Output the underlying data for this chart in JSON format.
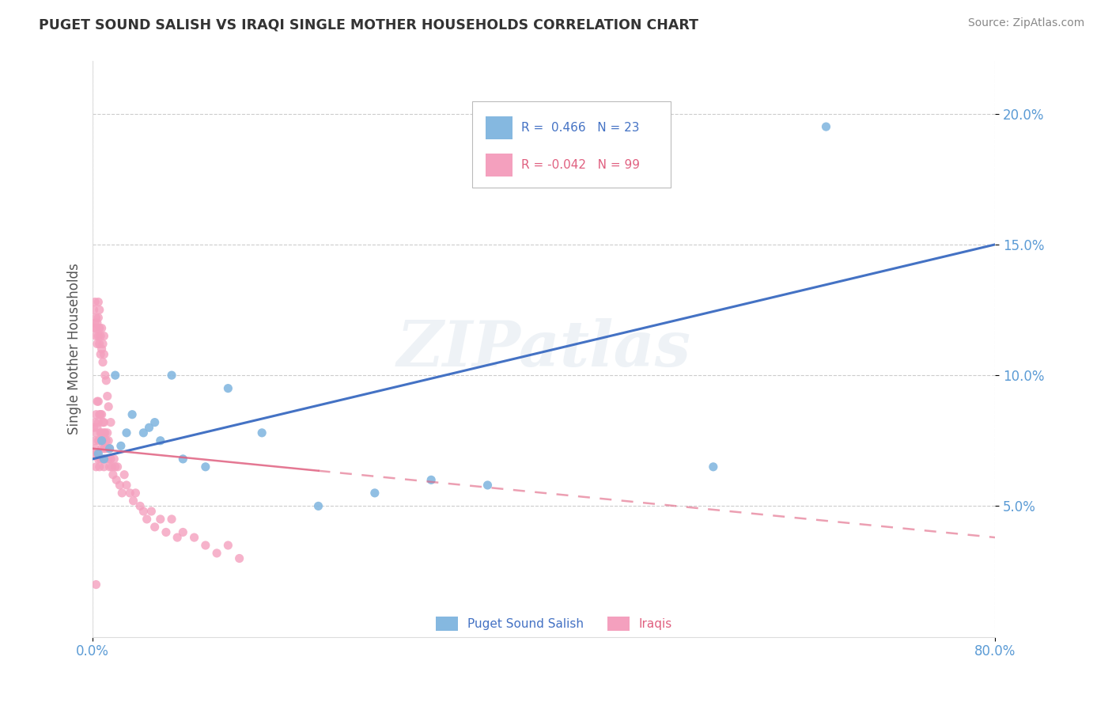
{
  "title": "PUGET SOUND SALISH VS IRAQI SINGLE MOTHER HOUSEHOLDS CORRELATION CHART",
  "source": "Source: ZipAtlas.com",
  "ylabel": "Single Mother Households",
  "xlim": [
    0.0,
    0.8
  ],
  "ylim": [
    0.0,
    0.22
  ],
  "yticks": [
    0.05,
    0.1,
    0.15,
    0.2
  ],
  "ytick_labels": [
    "5.0%",
    "10.0%",
    "15.0%",
    "20.0%"
  ],
  "blue_color": "#85b8e0",
  "pink_color": "#f4a0be",
  "blue_line_color": "#4472c4",
  "pink_line_color": "#e06080",
  "watermark_text": "ZIPatlas",
  "legend_blue_r": "R =  0.466",
  "legend_blue_n": "N = 23",
  "legend_pink_r": "R = -0.042",
  "legend_pink_n": "N = 99",
  "blue_x": [
    0.005,
    0.008,
    0.01,
    0.015,
    0.02,
    0.025,
    0.03,
    0.035,
    0.045,
    0.05,
    0.055,
    0.06,
    0.07,
    0.08,
    0.1,
    0.12,
    0.15,
    0.2,
    0.25,
    0.3,
    0.35,
    0.55,
    0.65
  ],
  "blue_y": [
    0.07,
    0.075,
    0.068,
    0.072,
    0.1,
    0.073,
    0.078,
    0.085,
    0.078,
    0.08,
    0.082,
    0.075,
    0.1,
    0.068,
    0.065,
    0.095,
    0.078,
    0.05,
    0.055,
    0.06,
    0.058,
    0.065,
    0.195
  ],
  "pink_x": [
    0.001,
    0.001,
    0.002,
    0.002,
    0.002,
    0.003,
    0.003,
    0.003,
    0.004,
    0.004,
    0.004,
    0.005,
    0.005,
    0.005,
    0.005,
    0.006,
    0.006,
    0.006,
    0.007,
    0.007,
    0.007,
    0.008,
    0.008,
    0.008,
    0.009,
    0.009,
    0.009,
    0.01,
    0.01,
    0.01,
    0.01,
    0.011,
    0.011,
    0.012,
    0.012,
    0.013,
    0.013,
    0.014,
    0.014,
    0.015,
    0.015,
    0.016,
    0.017,
    0.018,
    0.019,
    0.02,
    0.021,
    0.022,
    0.024,
    0.026,
    0.028,
    0.03,
    0.033,
    0.036,
    0.038,
    0.042,
    0.045,
    0.048,
    0.052,
    0.055,
    0.06,
    0.065,
    0.07,
    0.075,
    0.08,
    0.09,
    0.1,
    0.11,
    0.12,
    0.13,
    0.001,
    0.001,
    0.002,
    0.002,
    0.003,
    0.003,
    0.003,
    0.004,
    0.004,
    0.005,
    0.005,
    0.005,
    0.006,
    0.006,
    0.006,
    0.007,
    0.007,
    0.008,
    0.008,
    0.009,
    0.009,
    0.01,
    0.01,
    0.011,
    0.012,
    0.013,
    0.014,
    0.016,
    0.003
  ],
  "pink_y": [
    0.07,
    0.08,
    0.072,
    0.082,
    0.075,
    0.065,
    0.078,
    0.085,
    0.07,
    0.08,
    0.09,
    0.068,
    0.075,
    0.082,
    0.09,
    0.065,
    0.075,
    0.085,
    0.068,
    0.078,
    0.085,
    0.072,
    0.078,
    0.085,
    0.068,
    0.075,
    0.082,
    0.065,
    0.072,
    0.078,
    0.082,
    0.072,
    0.078,
    0.068,
    0.075,
    0.072,
    0.078,
    0.068,
    0.075,
    0.065,
    0.072,
    0.068,
    0.065,
    0.062,
    0.068,
    0.065,
    0.06,
    0.065,
    0.058,
    0.055,
    0.062,
    0.058,
    0.055,
    0.052,
    0.055,
    0.05,
    0.048,
    0.045,
    0.048,
    0.042,
    0.045,
    0.04,
    0.045,
    0.038,
    0.04,
    0.038,
    0.035,
    0.032,
    0.035,
    0.03,
    0.118,
    0.125,
    0.12,
    0.128,
    0.115,
    0.122,
    0.118,
    0.112,
    0.12,
    0.115,
    0.122,
    0.128,
    0.112,
    0.118,
    0.125,
    0.108,
    0.115,
    0.11,
    0.118,
    0.105,
    0.112,
    0.108,
    0.115,
    0.1,
    0.098,
    0.092,
    0.088,
    0.082,
    0.02
  ]
}
